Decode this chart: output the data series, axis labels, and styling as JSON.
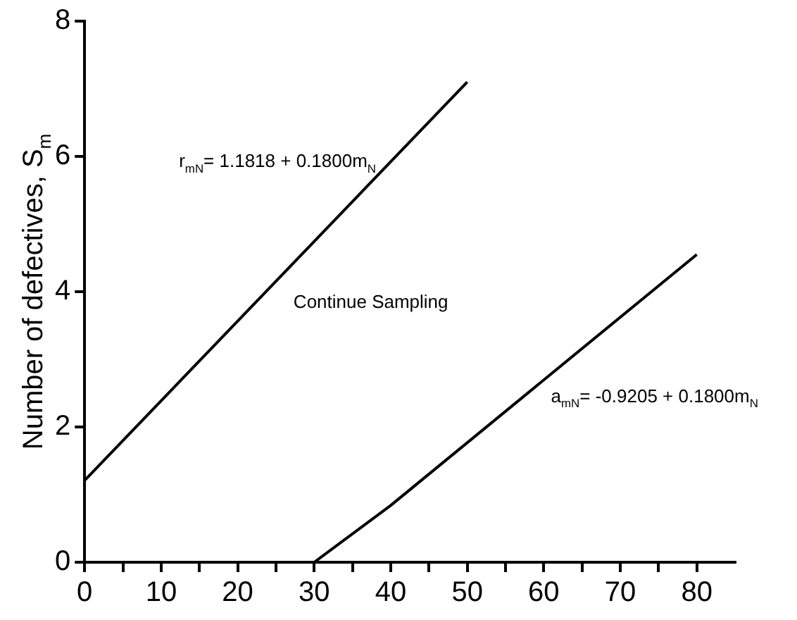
{
  "chart_data": {
    "type": "line",
    "ylabel": "Number of defectives, S$_{m}$",
    "series": [
      {
        "name": "r$_{mN}$= 1.1818 + 0.1800m$_{N}$",
        "color": "#000000",
        "x": [
          0,
          50
        ],
        "values": [
          1.21,
          7.1
        ]
      },
      {
        "name": "a$_{mN}$= -0.9205 + 0.1800m$_{N}$",
        "color": "#000000",
        "x": [
          30,
          40,
          80
        ],
        "values": [
          0,
          0.84,
          4.55
        ]
      }
    ],
    "annotations": [
      "Continue Sampling"
    ],
    "xlim": [
      0,
      85
    ],
    "xticks": [
      0,
      {
        "value": 5,
        "label": null
      },
      10,
      {
        "value": 15,
        "label": null
      },
      20,
      {
        "value": 25,
        "label": null
      },
      30,
      {
        "value": 35,
        "label": null
      },
      40,
      {
        "value": 45,
        "label": null
      },
      50,
      {
        "value": 55,
        "label": null
      },
      60,
      {
        "value": 65,
        "label": null
      },
      70,
      {
        "value": 75,
        "label": null
      },
      80
    ],
    "ylim": [
      0,
      8
    ],
    "yticks": [
      0,
      2,
      4,
      6,
      8
    ],
    "grid": false,
    "legend": false,
    "marker": "none",
    "line_style": "solid"
  }
}
